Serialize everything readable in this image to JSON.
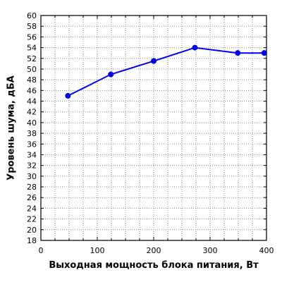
{
  "chart_data": {
    "type": "line",
    "title": "",
    "xlabel": "Выходная мощность блока питания, Вт",
    "ylabel": "Уровень шума, дБА",
    "xlim": [
      0,
      400
    ],
    "ylim": [
      18,
      60
    ],
    "x_ticks": [
      0,
      100,
      200,
      300,
      400
    ],
    "y_ticks": [
      18,
      20,
      22,
      24,
      26,
      28,
      30,
      32,
      34,
      36,
      38,
      40,
      42,
      44,
      46,
      48,
      50,
      52,
      54,
      56,
      58,
      60
    ],
    "x_minor_step": 25,
    "grid": true,
    "legend": "none",
    "series": [
      {
        "color": "#0000ee",
        "x": [
          48,
          124,
          200,
          273,
          349,
          396
        ],
        "y": [
          45,
          49,
          51.5,
          54,
          53,
          53
        ]
      }
    ]
  }
}
